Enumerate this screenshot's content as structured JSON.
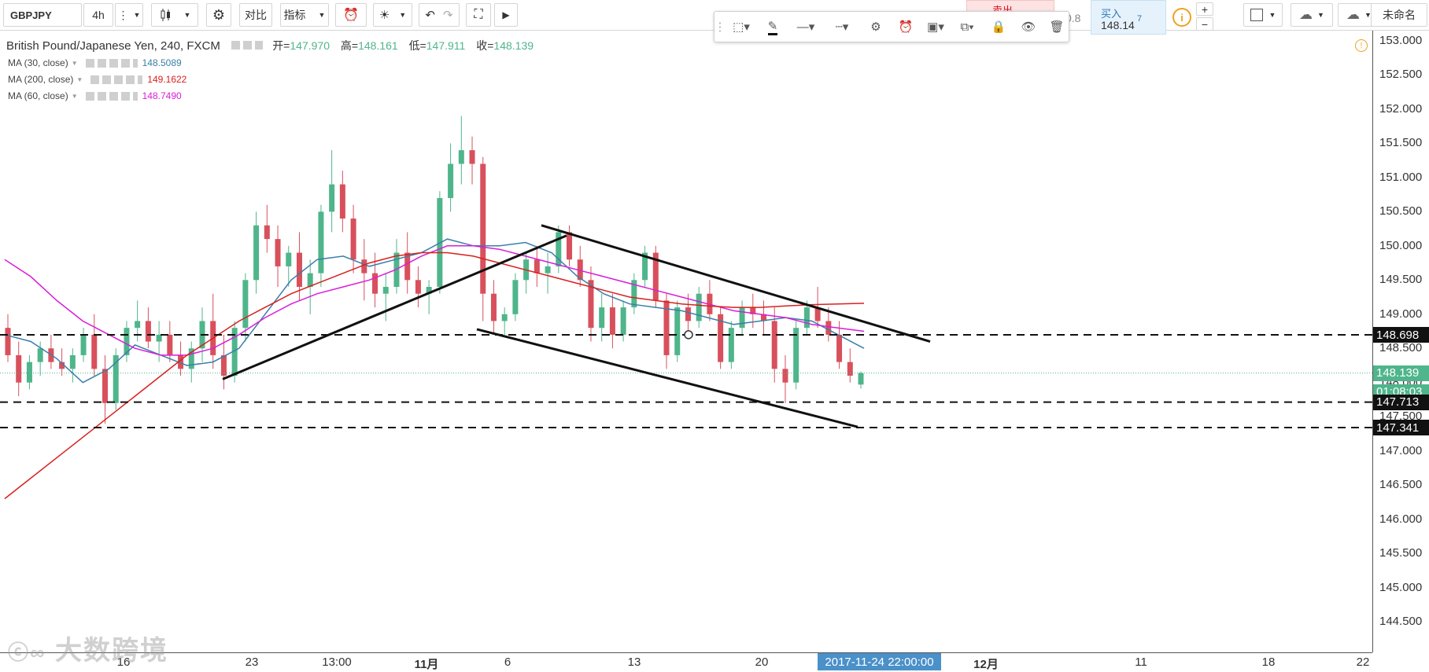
{
  "toolbar": {
    "symbol": "GBPJPY",
    "interval": "4h",
    "compare_label": "对比",
    "indicators_label": "指标",
    "layout_name": "未命名",
    "trade": {
      "sell_label": "卖出",
      "sell_price_tail": "0.8",
      "buy_label": "买入",
      "buy_price": "148.14",
      "buy_price_sup": "7"
    }
  },
  "legend": {
    "title": "British Pound/Japanese Yen, 240, FXCM",
    "open_label": "开=",
    "open": "147.970",
    "high_label": "高=",
    "high": "148.161",
    "low_label": "低=",
    "low": "147.911",
    "close_label": "收=",
    "close": "148.139",
    "mas": [
      {
        "label": "MA (30, close)",
        "value": "148.5089",
        "color": "#3a7fa8"
      },
      {
        "label": "MA (200, close)",
        "value": "149.1622",
        "color": "#d8201f"
      },
      {
        "label": "MA (60, close)",
        "value": "148.7490",
        "color": "#d81ed8"
      }
    ]
  },
  "price_axis": {
    "ticks": [
      "153.000",
      "152.500",
      "152.000",
      "151.500",
      "151.000",
      "150.500",
      "150.000",
      "149.500",
      "149.000",
      "148.500",
      "148.000",
      "147.500",
      "147.000",
      "146.500",
      "146.000",
      "145.500",
      "145.000",
      "144.500"
    ],
    "current_price": "148.139",
    "countdown": "01:08:03",
    "levels": [
      "148.698",
      "147.713",
      "147.341"
    ],
    "current_color": "#4fb58b"
  },
  "time_axis": {
    "labels": [
      "16",
      "23",
      "13:00",
      "11月",
      "6",
      "13",
      "20",
      "12月",
      "11",
      "18",
      "22"
    ],
    "crosshair_time": "2017-11-24 22:00:00"
  },
  "watermark": "大数跨境",
  "chart_data": {
    "type": "candlestick",
    "title": "British Pound/Japanese Yen, 240, FXCM",
    "ylim": [
      144.2,
      153.2
    ],
    "series": [
      {
        "name": "MA (30, close)",
        "values": [
          148.7,
          148.6,
          148.35,
          148.0,
          148.2,
          148.55,
          148.4,
          148.25,
          148.3,
          148.5,
          149.0,
          149.5,
          149.8,
          149.85,
          149.7,
          149.8,
          149.9,
          150.1,
          150.0,
          150.0,
          150.05,
          149.9,
          149.55,
          149.3,
          149.15,
          149.1,
          149.05,
          148.95,
          148.85,
          148.9,
          148.95,
          148.9,
          148.7,
          148.5
        ]
      },
      {
        "name": "MA (60, close)",
        "values": [
          149.8,
          149.55,
          149.2,
          148.9,
          148.7,
          148.5,
          148.4,
          148.4,
          148.5,
          148.7,
          148.95,
          149.15,
          149.3,
          149.4,
          149.5,
          149.65,
          149.85,
          150.0,
          150.0,
          149.95,
          149.85,
          149.75,
          149.65,
          149.55,
          149.45,
          149.35,
          149.25,
          149.15,
          149.05,
          149.0,
          148.95,
          148.85,
          148.8,
          148.75
        ]
      },
      {
        "name": "MA (200, close)",
        "values": [
          146.3,
          146.6,
          146.9,
          147.2,
          147.5,
          147.8,
          148.1,
          148.4,
          148.65,
          148.9,
          149.1,
          149.3,
          149.45,
          149.6,
          149.75,
          149.85,
          149.9,
          149.9,
          149.85,
          149.75,
          149.65,
          149.55,
          149.45,
          149.35,
          149.25,
          149.2,
          149.15,
          149.12,
          149.1,
          149.1,
          149.12,
          149.14,
          149.15,
          149.16
        ]
      }
    ],
    "candles": [
      [
        148.8,
        149.0,
        148.3,
        148.4
      ],
      [
        148.4,
        148.6,
        147.8,
        148.0
      ],
      [
        148.0,
        148.4,
        147.9,
        148.3
      ],
      [
        148.3,
        148.6,
        148.1,
        148.5
      ],
      [
        148.5,
        148.7,
        148.2,
        148.3
      ],
      [
        148.3,
        148.5,
        148.1,
        148.2
      ],
      [
        148.2,
        148.5,
        148.0,
        148.4
      ],
      [
        148.4,
        148.8,
        148.3,
        148.7
      ],
      [
        148.7,
        149.0,
        148.1,
        148.2
      ],
      [
        148.2,
        148.4,
        147.4,
        147.7
      ],
      [
        147.7,
        148.5,
        147.6,
        148.4
      ],
      [
        148.4,
        148.9,
        148.3,
        148.8
      ],
      [
        148.8,
        149.2,
        148.6,
        148.9
      ],
      [
        148.9,
        149.1,
        148.5,
        148.6
      ],
      [
        148.6,
        148.9,
        148.3,
        148.7
      ],
      [
        148.7,
        148.9,
        148.3,
        148.4
      ],
      [
        148.4,
        148.6,
        148.1,
        148.2
      ],
      [
        148.2,
        148.6,
        148.0,
        148.5
      ],
      [
        148.5,
        149.1,
        148.3,
        148.9
      ],
      [
        148.9,
        149.3,
        148.2,
        148.4
      ],
      [
        148.4,
        148.7,
        147.9,
        148.1
      ],
      [
        148.1,
        148.9,
        148.0,
        148.8
      ],
      [
        148.8,
        149.6,
        148.6,
        149.5
      ],
      [
        149.5,
        150.5,
        149.3,
        150.3
      ],
      [
        150.3,
        150.6,
        149.9,
        150.1
      ],
      [
        150.1,
        150.3,
        149.4,
        149.7
      ],
      [
        149.7,
        150.0,
        149.4,
        149.9
      ],
      [
        149.9,
        150.2,
        149.2,
        149.4
      ],
      [
        149.4,
        149.8,
        149.0,
        149.6
      ],
      [
        149.6,
        150.6,
        149.4,
        150.5
      ],
      [
        150.5,
        151.4,
        150.2,
        150.9
      ],
      [
        150.9,
        151.1,
        150.2,
        150.4
      ],
      [
        150.4,
        150.6,
        149.6,
        149.8
      ],
      [
        149.8,
        150.1,
        149.2,
        149.6
      ],
      [
        149.6,
        149.9,
        149.1,
        149.3
      ],
      [
        149.3,
        149.6,
        148.9,
        149.4
      ],
      [
        149.4,
        150.1,
        149.3,
        149.9
      ],
      [
        149.9,
        150.2,
        149.3,
        149.5
      ],
      [
        149.5,
        149.7,
        149.1,
        149.3
      ],
      [
        149.3,
        149.5,
        149.0,
        149.4
      ],
      [
        149.4,
        150.8,
        149.3,
        150.7
      ],
      [
        150.7,
        151.5,
        150.5,
        151.2
      ],
      [
        151.2,
        151.9,
        150.9,
        151.4
      ],
      [
        151.4,
        151.6,
        150.9,
        151.2
      ],
      [
        151.2,
        151.3,
        148.9,
        149.3
      ],
      [
        149.3,
        149.5,
        148.7,
        148.9
      ],
      [
        148.9,
        149.1,
        148.7,
        149.0
      ],
      [
        149.0,
        149.6,
        148.9,
        149.5
      ],
      [
        149.5,
        149.9,
        149.3,
        149.8
      ],
      [
        149.8,
        150.0,
        149.4,
        149.6
      ],
      [
        149.6,
        149.9,
        149.3,
        149.7
      ],
      [
        149.7,
        150.3,
        149.6,
        150.2
      ],
      [
        150.2,
        150.3,
        149.7,
        149.8
      ],
      [
        149.8,
        150.0,
        149.4,
        149.5
      ],
      [
        149.5,
        149.7,
        148.6,
        148.8
      ],
      [
        148.8,
        149.3,
        148.6,
        149.1
      ],
      [
        149.1,
        149.3,
        148.5,
        148.7
      ],
      [
        148.7,
        149.2,
        148.6,
        149.1
      ],
      [
        149.1,
        149.6,
        149.0,
        149.5
      ],
      [
        149.5,
        150.0,
        149.4,
        149.9
      ],
      [
        149.9,
        150.0,
        149.1,
        149.2
      ],
      [
        149.2,
        149.3,
        148.2,
        148.4
      ],
      [
        148.4,
        149.2,
        148.3,
        149.1
      ],
      [
        149.1,
        149.3,
        148.7,
        148.9
      ],
      [
        148.9,
        149.4,
        148.8,
        149.3
      ],
      [
        149.3,
        149.5,
        148.9,
        149.0
      ],
      [
        149.0,
        149.1,
        148.2,
        148.3
      ],
      [
        148.3,
        148.9,
        148.2,
        148.8
      ],
      [
        148.8,
        149.2,
        148.7,
        149.1
      ],
      [
        149.1,
        149.3,
        148.8,
        149.0
      ],
      [
        149.0,
        149.2,
        148.7,
        148.9
      ],
      [
        148.9,
        149.1,
        148.0,
        148.2
      ],
      [
        148.2,
        148.4,
        147.7,
        148.0
      ],
      [
        148.0,
        148.9,
        147.9,
        148.8
      ],
      [
        148.8,
        149.2,
        148.7,
        149.1
      ],
      [
        149.1,
        149.4,
        148.8,
        148.9
      ],
      [
        148.9,
        149.1,
        148.6,
        148.7
      ],
      [
        148.7,
        148.9,
        148.2,
        148.3
      ],
      [
        148.3,
        148.5,
        148.0,
        148.1
      ],
      [
        147.97,
        148.16,
        147.91,
        148.139
      ]
    ]
  }
}
